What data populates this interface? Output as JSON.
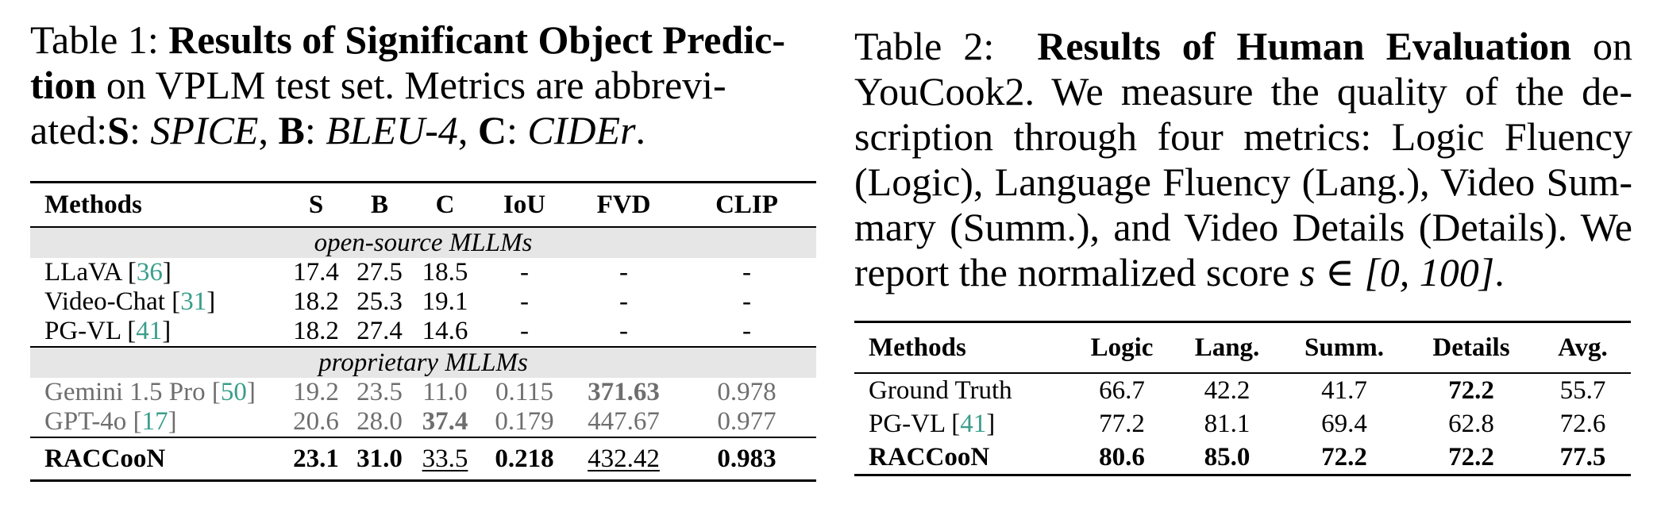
{
  "table1": {
    "caption": {
      "label": "Table 1: ",
      "title": "Results of Significant Object Predic-tion",
      "title_l1": "Results of Significant Object Predic-",
      "title_l2": "tion",
      "text1": " on VPLM test set.  Metrics are abbrevi-",
      "text2": "ated:",
      "s_key": "S",
      "s_val": "SPICE",
      "b_key": "B",
      "b_val": "BLEU-4",
      "c_key": "C",
      "c_val": "CIDEr",
      "sep": ": ",
      "comma": ", ",
      "end": "."
    },
    "headers": [
      "Methods",
      "S",
      "B",
      "C",
      "IoU",
      "FVD",
      "CLIP"
    ],
    "groups": [
      "open-source MLLMs",
      "proprietary MLLMs"
    ],
    "rows": [
      {
        "name": "LLaVA ",
        "cite": "36",
        "cells": [
          "17.4",
          "27.5",
          "18.5",
          "-",
          "-",
          "-"
        ]
      },
      {
        "name": "Video-Chat ",
        "cite": "31",
        "cells": [
          "18.2",
          "25.3",
          "19.1",
          "-",
          "-",
          "-"
        ]
      },
      {
        "name": "PG-VL ",
        "cite": "41",
        "cells": [
          "18.2",
          "27.4",
          "14.6",
          "-",
          "-",
          "-"
        ]
      },
      {
        "name": "Gemini 1.5 Pro ",
        "cite": "50",
        "cells": [
          "19.2",
          "23.5",
          "11.0",
          "0.115",
          "371.63",
          "0.978"
        ]
      },
      {
        "name": "GPT-4o ",
        "cite": "17",
        "cells": [
          "20.6",
          "28.0",
          "37.4",
          "0.179",
          "447.67",
          "0.977"
        ]
      },
      {
        "name": "RACCooN",
        "cite": "",
        "cells": [
          "23.1",
          "31.0",
          "33.5",
          "0.218",
          "432.42",
          "0.983"
        ]
      }
    ]
  },
  "table2": {
    "caption": {
      "label": "Table 2:  ",
      "title": "Results of Human Evaluation",
      "text": " on YouCook2.  We measure the quality of the de-scription through four metrics: Logic Fluency (Logic), Language Fluency (Lang.), Video Sum-mary (Summ.), and Video Details (Details). We report the normalized score ",
      "math": "s ∈ [0, 100]",
      "end": "."
    },
    "headers": [
      "Methods",
      "Logic",
      "Lang.",
      "Summ.",
      "Details",
      "Avg."
    ],
    "rows": [
      {
        "name": "Ground Truth",
        "cite": "",
        "cells": [
          "66.7",
          "42.2",
          "41.7",
          "72.2",
          "55.7"
        ]
      },
      {
        "name": "PG-VL ",
        "cite": "41",
        "cells": [
          "77.2",
          "81.1",
          "69.4",
          "62.8",
          "72.6"
        ]
      },
      {
        "name": "RACCooN",
        "cite": "",
        "cells": [
          "80.6",
          "85.0",
          "72.2",
          "72.2",
          "77.5"
        ]
      }
    ]
  }
}
